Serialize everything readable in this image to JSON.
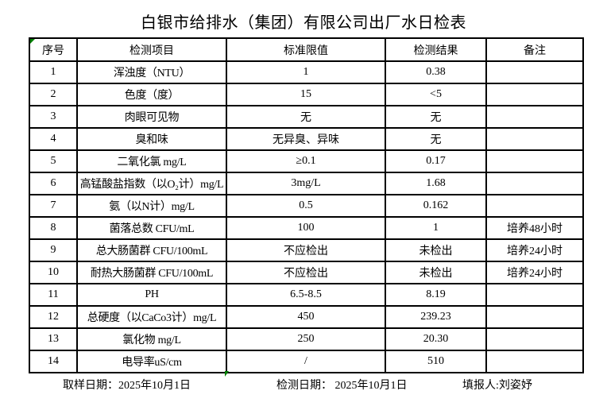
{
  "title": "白银市给排水（集团）有限公司出厂水日检表",
  "colors": {
    "marker_green": "#008000",
    "border_black": "#000000",
    "background": "#ffffff"
  },
  "table": {
    "headers": [
      "序号",
      "检测项目",
      "标准限值",
      "检测结果",
      "备注"
    ],
    "rows": [
      {
        "no": "1",
        "item": "浑浊度（NTU）",
        "limit": "1",
        "result": "0.38",
        "note": ""
      },
      {
        "no": "2",
        "item": "色度（度）",
        "limit": "15",
        "result": "<5",
        "note": ""
      },
      {
        "no": "3",
        "item": "肉眼可见物",
        "limit": "无",
        "result": "无",
        "note": ""
      },
      {
        "no": "4",
        "item": "臭和味",
        "limit": "无异臭、异味",
        "result": "无",
        "note": ""
      },
      {
        "no": "5",
        "item": "二氧化氯 mg/L",
        "limit": "≥0.1",
        "result": "0.17",
        "note": ""
      },
      {
        "no": "6",
        "item": "高锰酸盐指数（以O₂计）mg/L",
        "limit": "3mg/L",
        "result": "1.68",
        "note": ""
      },
      {
        "no": "7",
        "item": "氨（以N计）mg/L",
        "limit": "0.5",
        "result": "0.162",
        "note": ""
      },
      {
        "no": "8",
        "item": "菌落总数 CFU/mL",
        "limit": "100",
        "result": "1",
        "note": "培养48小时"
      },
      {
        "no": "9",
        "item": "总大肠菌群 CFU/100mL",
        "limit": "不应检出",
        "result": "未检出",
        "note": "培养24小时"
      },
      {
        "no": "10",
        "item": "耐热大肠菌群 CFU/100mL",
        "limit": "不应检出",
        "result": "未检出",
        "note": "培养24小时"
      },
      {
        "no": "11",
        "item": "PH",
        "limit": "6.5-8.5",
        "result": "8.19",
        "note": ""
      },
      {
        "no": "12",
        "item": "总硬度（以CaCo3计）mg/L",
        "limit": "450",
        "result": "239.23",
        "note": ""
      },
      {
        "no": "13",
        "item": "氯化物 mg/L",
        "limit": "250",
        "result": "20.30",
        "note": ""
      },
      {
        "no": "14",
        "item": "电导率uS/cm",
        "limit": "/",
        "result": "510",
        "note": ""
      }
    ]
  },
  "footer": {
    "sampling": "取样日期：2025年10月1日",
    "testing": "检测日期： 2025年10月1日",
    "reporter": "填报人:刘姿妤"
  }
}
